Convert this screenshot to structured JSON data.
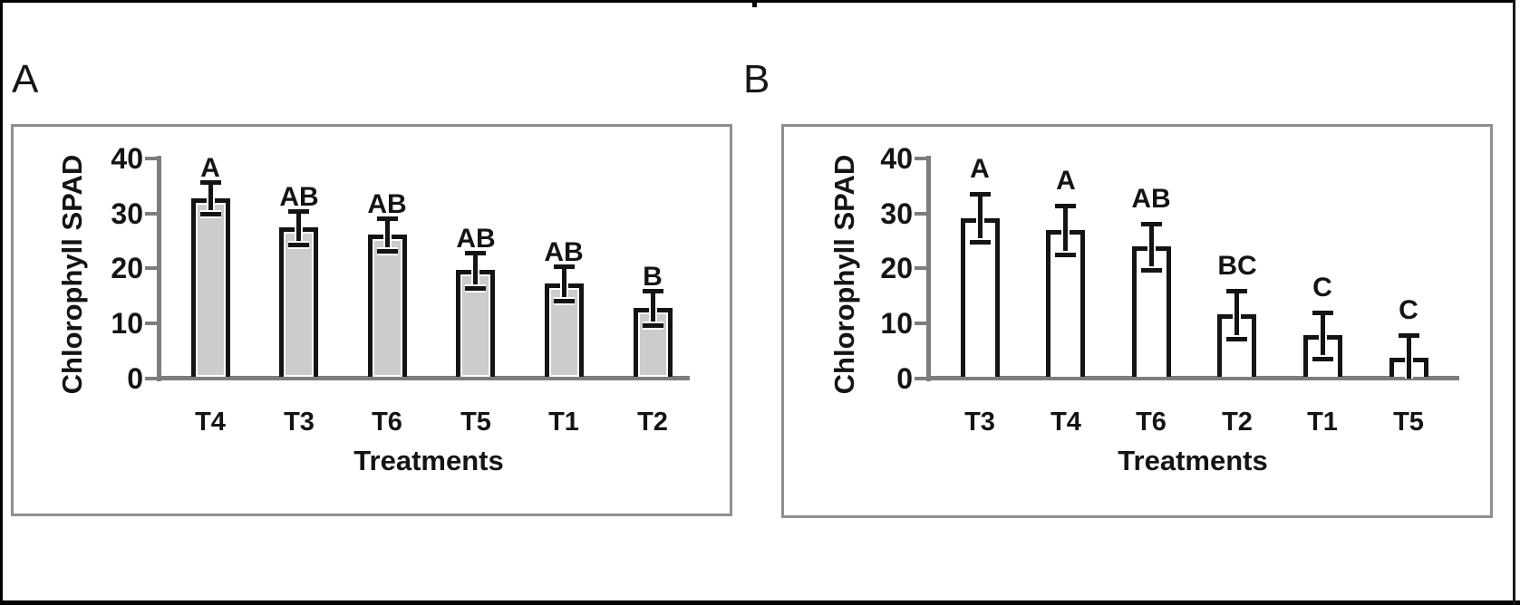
{
  "chart_data": [
    {
      "type": "bar",
      "panel_label": "A",
      "title": "",
      "ylabel": "Chlorophyll SPAD",
      "xlabel": "Treatments",
      "ylim": [
        0,
        40
      ],
      "y_ticks": [
        0,
        10,
        20,
        30,
        40
      ],
      "grid": false,
      "legend": null,
      "bar_fill": "#cccccc",
      "bar_border": "#141414",
      "categories": [
        "T4",
        "T3",
        "T6",
        "T5",
        "T1",
        "T2"
      ],
      "values": [
        32.8,
        27.4,
        26.2,
        19.7,
        17.2,
        12.8
      ],
      "error_bars": [
        2.9,
        3.0,
        3.0,
        3.2,
        3.1,
        3.1
      ],
      "sig_letters": [
        "A",
        "AB",
        "AB",
        "AB",
        "AB",
        "B"
      ]
    },
    {
      "type": "bar",
      "panel_label": "B",
      "title": "",
      "ylabel": "Chlorophyll SPAD",
      "xlabel": "Treatments",
      "ylim": [
        0,
        40
      ],
      "y_ticks": [
        0,
        10,
        20,
        30,
        40
      ],
      "grid": false,
      "legend": null,
      "bar_fill": "#ffffff",
      "bar_border": "#141414",
      "categories": [
        "T3",
        "T4",
        "T6",
        "T2",
        "T1",
        "T5"
      ],
      "values": [
        29.2,
        27.0,
        24.0,
        11.6,
        7.8,
        3.7
      ],
      "error_bars": [
        4.4,
        4.5,
        4.2,
        4.4,
        4.2,
        4.2
      ],
      "sig_letters": [
        "A",
        "A",
        "AB",
        "BC",
        "C",
        "C"
      ]
    }
  ]
}
